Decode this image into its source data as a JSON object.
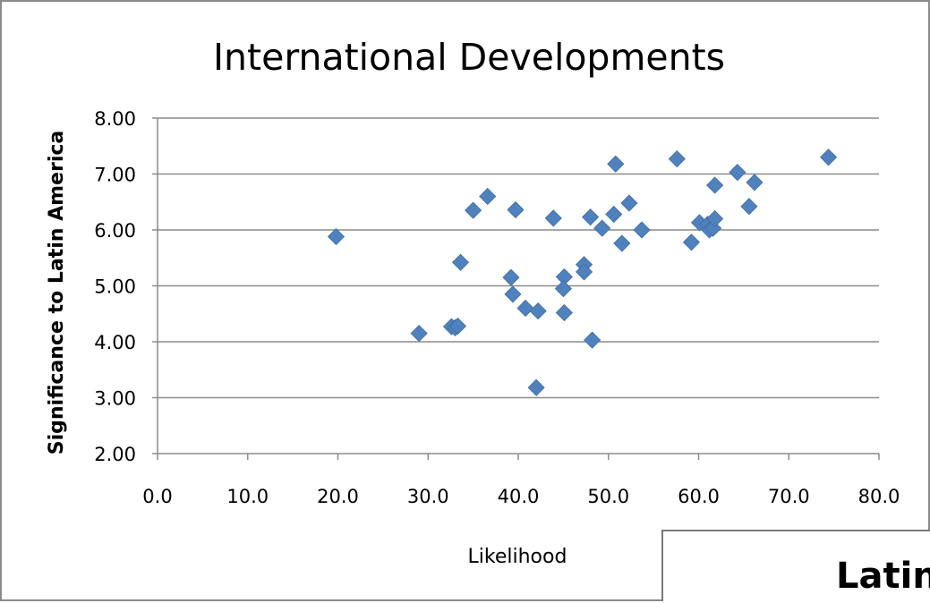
{
  "chart_data": {
    "type": "scatter",
    "title": "International Developments",
    "xlabel": "Likelihood",
    "ylabel": "Significance to Latin America",
    "xlim": [
      0,
      80
    ],
    "ylim": [
      2,
      8
    ],
    "xticks": [
      0,
      10,
      20,
      30,
      40,
      50,
      60,
      70,
      80
    ],
    "yticks": [
      2,
      3,
      4,
      5,
      6,
      7,
      8
    ],
    "xtick_labels": [
      "0.0",
      "10.0",
      "20.0",
      "30.0",
      "40.0",
      "50.0",
      "60.0",
      "70.0",
      "80.0"
    ],
    "ytick_labels": [
      "2.00",
      "3.00",
      "4.00",
      "5.00",
      "6.00",
      "7.00",
      "8.00"
    ],
    "grid": "horizontal",
    "legend": "none",
    "marker_color": "#4f81bd",
    "series": [
      {
        "points": [
          [
            19.8,
            5.88
          ],
          [
            29.0,
            4.15
          ],
          [
            32.6,
            4.27
          ],
          [
            33.0,
            4.25
          ],
          [
            33.3,
            4.28
          ],
          [
            33.6,
            5.42
          ],
          [
            35.0,
            6.35
          ],
          [
            36.6,
            6.6
          ],
          [
            39.2,
            5.15
          ],
          [
            39.4,
            4.85
          ],
          [
            39.7,
            6.36
          ],
          [
            40.8,
            4.6
          ],
          [
            42.2,
            4.55
          ],
          [
            42.0,
            3.18
          ],
          [
            43.9,
            6.21
          ],
          [
            45.1,
            5.16
          ],
          [
            45.0,
            4.95
          ],
          [
            45.1,
            4.52
          ],
          [
            47.3,
            5.38
          ],
          [
            47.3,
            5.25
          ],
          [
            48.0,
            6.23
          ],
          [
            48.2,
            4.03
          ],
          [
            49.3,
            6.03
          ],
          [
            50.6,
            6.28
          ],
          [
            50.8,
            7.18
          ],
          [
            51.5,
            5.76
          ],
          [
            52.3,
            6.48
          ],
          [
            53.7,
            6.0
          ],
          [
            57.6,
            7.27
          ],
          [
            59.2,
            5.78
          ],
          [
            60.1,
            6.13
          ],
          [
            61.0,
            6.1
          ],
          [
            61.2,
            6.0
          ],
          [
            61.6,
            6.03
          ],
          [
            61.8,
            6.2
          ],
          [
            61.8,
            6.8
          ],
          [
            64.3,
            7.03
          ],
          [
            65.6,
            6.42
          ],
          [
            66.2,
            6.85
          ],
          [
            74.4,
            7.3
          ]
        ]
      }
    ]
  },
  "overlap": {
    "text": "Latin"
  }
}
